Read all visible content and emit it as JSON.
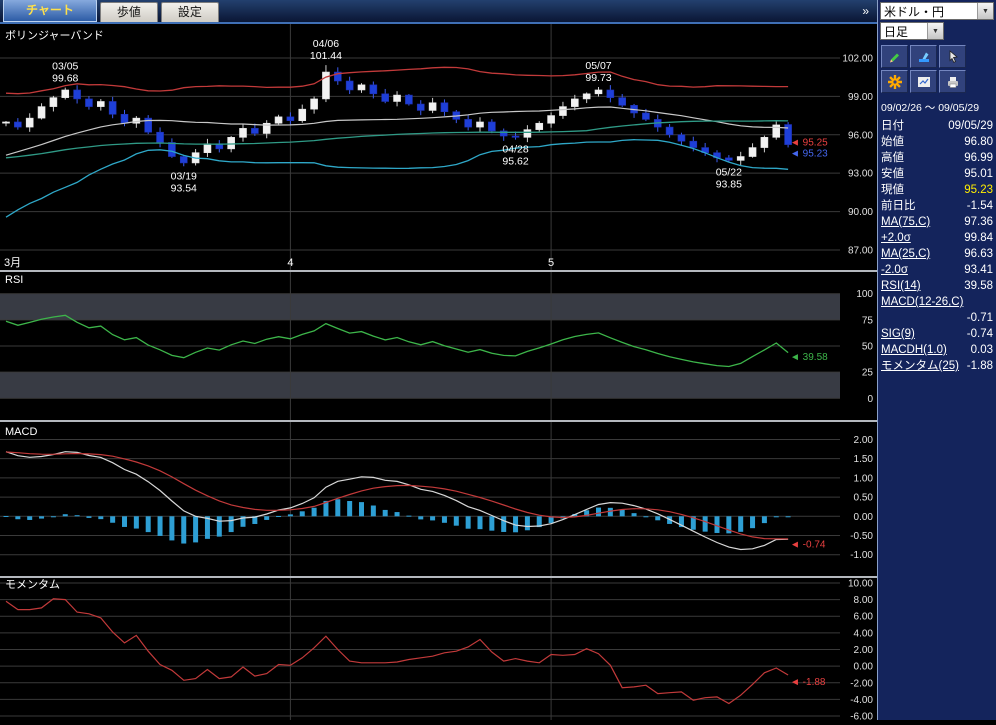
{
  "header": {
    "overflow": "»"
  },
  "tabs": [
    {
      "label": "チャート",
      "active": true
    },
    {
      "label": "歩値",
      "active": false
    },
    {
      "label": "設定",
      "active": false
    }
  ],
  "sidebar": {
    "symbol": "米ドル・円",
    "timeframe": "日足",
    "date_range": "09/02/26 ～ 09/05/29",
    "tools": [
      {
        "name": "pencil-icon"
      },
      {
        "name": "brush-icon"
      },
      {
        "name": "cursor-icon"
      },
      {
        "name": "gear-icon"
      },
      {
        "name": "chart-icon"
      },
      {
        "name": "printer-icon"
      }
    ],
    "rows": [
      {
        "label": "日付",
        "value": "09/05/29"
      },
      {
        "label": "始値",
        "value": "96.80"
      },
      {
        "label": "高値",
        "value": "96.99"
      },
      {
        "label": "安値",
        "value": "95.01"
      },
      {
        "label": "現値",
        "value": "95.23",
        "highlight": true
      },
      {
        "label": "前日比",
        "value": "-1.54"
      },
      {
        "label": "MA(75,C)",
        "value": "97.36",
        "link": true
      },
      {
        "label": "+2.0σ",
        "value": "99.84",
        "link": true
      },
      {
        "label": "MA(25,C)",
        "value": "96.63",
        "link": true
      },
      {
        "label": "-2.0σ",
        "value": "93.41",
        "link": true
      },
      {
        "label": "RSI(14)",
        "value": "39.58",
        "link": true
      },
      {
        "label": "MACD(12-26,C)",
        "value": "",
        "link": true
      },
      {
        "label": "",
        "value": "-0.71"
      },
      {
        "label": "SIG(9)",
        "value": "-0.74",
        "link": true
      },
      {
        "label": "MACDH(1.0)",
        "value": "0.03",
        "link": true
      },
      {
        "label": "モメンタム(25)",
        "value": "-1.88",
        "link": true
      }
    ]
  },
  "colors": {
    "up_candle": "#f2f2f2",
    "down_candle": "#1e3fd8",
    "band_upper": "#c23a3a",
    "band_lower": "#2fa8c8",
    "ma25": "#c8c8c8",
    "ma75": "#2f9a86",
    "rsi": "#3db54a",
    "macd_line": "#d8d8d8",
    "signal_line": "#c23a3a",
    "histogram": "#2e9fd4",
    "momentum": "#c23a3a",
    "marker_red": "#e84040",
    "marker_blue": "#4466ee"
  },
  "chart_data": [
    {
      "type": "candlestick",
      "title": "ボリンジャーバンド",
      "yticks": [
        "102.00",
        "99.00",
        "96.00",
        "93.00",
        "90.00",
        "87.00"
      ],
      "ylim": [
        86.53,
        104.34
      ],
      "xticklabels": [
        "3月",
        "4",
        "5"
      ],
      "month_tick_indices": [
        0,
        24,
        46
      ],
      "pre_closes": [
        89.2,
        89.8,
        90.5,
        91.2,
        90.8,
        91.5,
        92.3,
        91.9,
        92.8,
        93.5,
        94.1,
        93.6,
        94.4,
        95.2,
        94.8,
        95.5,
        96.1,
        95.7,
        96.4,
        97.1,
        96.6,
        97.3,
        97.8,
        97.2,
        97.0
      ],
      "closes": [
        97.0,
        96.6,
        97.3,
        98.2,
        98.9,
        99.5,
        98.8,
        98.2,
        98.6,
        97.6,
        96.9,
        97.3,
        96.2,
        95.4,
        94.3,
        93.8,
        94.6,
        95.3,
        94.9,
        95.8,
        96.5,
        96.1,
        96.9,
        97.4,
        97.1,
        98.0,
        98.8,
        100.9,
        100.2,
        99.5,
        99.9,
        99.2,
        98.6,
        99.1,
        98.4,
        97.9,
        98.5,
        97.8,
        97.2,
        96.6,
        97.0,
        96.3,
        95.9,
        95.8,
        96.4,
        96.9,
        97.5,
        98.2,
        98.8,
        99.2,
        99.5,
        98.9,
        98.3,
        97.7,
        97.2,
        96.6,
        96.0,
        95.5,
        95.0,
        94.6,
        94.2,
        94.0,
        94.3,
        95.0,
        95.8,
        96.77,
        95.23
      ],
      "last_candle": {
        "open": 96.8,
        "high": 96.99,
        "low": 95.01,
        "close": 95.23
      },
      "extremes": [
        {
          "index": 5,
          "type": "high",
          "value": 99.68,
          "date": "03/05"
        },
        {
          "index": 15,
          "type": "low",
          "value": 93.54,
          "date": "03/19"
        },
        {
          "index": 27,
          "type": "high",
          "value": 101.44,
          "date": "04/06"
        },
        {
          "index": 43,
          "type": "low",
          "value": 95.62,
          "date": "04/28"
        },
        {
          "index": 50,
          "type": "high",
          "value": 99.73,
          "date": "05/07"
        },
        {
          "index": 61,
          "type": "low",
          "value": 93.85,
          "date": "05/22"
        }
      ],
      "price_markers": [
        {
          "value": 95.25,
          "label": "95.25",
          "color": "#e84040"
        },
        {
          "value": 95.23,
          "label": "95.23",
          "color": "#4466ee"
        }
      ],
      "indicators": {
        "ma_fast": 25,
        "ma_slow": 75,
        "band_sigma": 2.0
      }
    },
    {
      "type": "line",
      "title": "RSI",
      "yticks": [
        "100",
        "75",
        "50",
        "25",
        "0"
      ],
      "ylim": [
        -15,
        115
      ],
      "shaded_zones": [
        [
          75,
          100
        ],
        [
          0,
          25
        ]
      ],
      "period": 14,
      "marker": {
        "value": 39.58,
        "label": "39.58",
        "color": "#3db54a"
      }
    },
    {
      "type": "macd",
      "title": "MACD",
      "yticks": [
        "2.00",
        "1.50",
        "1.00",
        "0.50",
        "0.00",
        "-0.50",
        "-1.00"
      ],
      "ylim": [
        -1.45,
        2.35
      ],
      "params": {
        "fast": 12,
        "slow": 26,
        "signal": 9
      },
      "marker": {
        "value": -0.74,
        "label": "-0.74",
        "color": "#e84040"
      }
    },
    {
      "type": "line",
      "title": "モメンタム",
      "yticks": [
        "10.00",
        "8.00",
        "6.00",
        "4.00",
        "2.00",
        "0.00",
        "-2.00",
        "-4.00",
        "-6.00"
      ],
      "ylim": [
        -6.24,
        10.12
      ],
      "period": 25,
      "marker": {
        "value": -1.88,
        "label": "-1.88",
        "color": "#e84040"
      }
    }
  ]
}
